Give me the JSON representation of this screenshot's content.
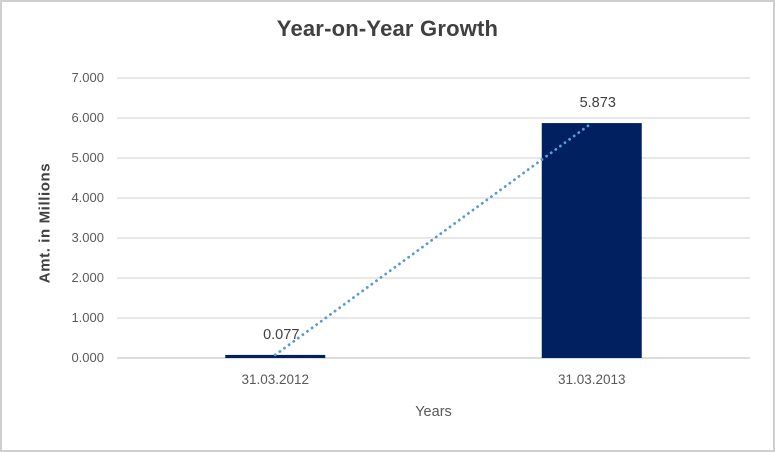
{
  "chart_data": {
    "type": "bar",
    "title": "Year-on-Year Growth",
    "categories": [
      "31.03.2012",
      "31.03.2013"
    ],
    "values": [
      0.077,
      5.873
    ],
    "data_labels": [
      "0.077",
      "5.873"
    ],
    "xlabel": "Years",
    "ylabel": "Amt. in Millions",
    "ylim": [
      0,
      7
    ],
    "ytick_step": 1,
    "ytick_labels": [
      "0.000",
      "1.000",
      "2.000",
      "3.000",
      "4.000",
      "5.000",
      "6.000",
      "7.000"
    ],
    "grid": true,
    "legend": "none",
    "bar_color": "#002060",
    "trendline": {
      "shape": "linear",
      "style": "dotted",
      "color": "#5B9BD5"
    },
    "colors": {
      "title": "#404040",
      "axis_title": "#595959",
      "y_axis_title": "#404040",
      "tick_label": "#595959",
      "data_label": "#404040",
      "gridline": "#D9D9D9",
      "axis_line": "#C6C6C6",
      "frame_border": "#CFCFCF",
      "background": "#FFFFFF"
    }
  }
}
